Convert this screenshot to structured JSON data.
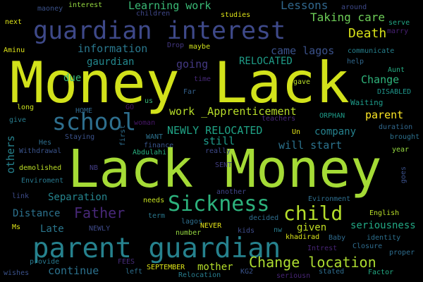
{
  "background": "#000000",
  "words": [
    {
      "id": "w1",
      "text": "Money Lack",
      "color": "#d2e21b"
    },
    {
      "id": "w2",
      "text": "Lack Money",
      "color": "#a5db36"
    },
    {
      "id": "w3",
      "text": "parent guardian",
      "color": "#26828e"
    },
    {
      "id": "w4",
      "text": "guardian interest",
      "color": "#3e4989"
    },
    {
      "id": "w5",
      "text": "Sickness",
      "color": "#2db27d"
    },
    {
      "id": "w6",
      "text": "school",
      "color": "#2e6f8e"
    },
    {
      "id": "w7",
      "text": "child",
      "color": "#b5de2b"
    },
    {
      "id": "w8",
      "text": "Father",
      "color": "#482878"
    },
    {
      "id": "w9",
      "text": "Change location",
      "color": "#addc30"
    },
    {
      "id": "w10",
      "text": "Death",
      "color": "#d8e219"
    },
    {
      "id": "w11",
      "text": "Lessons",
      "color": "#31688e"
    },
    {
      "id": "w12",
      "text": "Taking care",
      "color": "#6ece58"
    },
    {
      "id": "w13",
      "text": "Learning work",
      "color": "#3aba76"
    },
    {
      "id": "w14",
      "text": "information",
      "color": "#2a788e"
    },
    {
      "id": "w15",
      "text": "came lagos",
      "color": "#3b528b"
    },
    {
      "id": "w16",
      "text": "RELOCATED",
      "color": "#1f9e89"
    },
    {
      "id": "w17",
      "text": "Change",
      "color": "#2fb47c"
    },
    {
      "id": "w18",
      "text": "parent",
      "color": "#fde725"
    },
    {
      "id": "w19",
      "text": "NEWLY RELOCATED",
      "color": "#20a386"
    },
    {
      "id": "w20",
      "text": "company",
      "color": "#26828e"
    },
    {
      "id": "w21",
      "text": "will start",
      "color": "#2c738e"
    },
    {
      "id": "w22",
      "text": "still",
      "color": "#1f9a8a"
    },
    {
      "id": "w23",
      "text": "work _Apprenticement",
      "color": "#b8de29"
    },
    {
      "id": "w24",
      "text": "going",
      "color": "#443983"
    },
    {
      "id": "w25",
      "text": "gaurdian",
      "color": "#23888e"
    },
    {
      "id": "w26",
      "text": "due",
      "color": "#35b779"
    },
    {
      "id": "w27",
      "text": "seriousness",
      "color": "#22a884"
    },
    {
      "id": "w28",
      "text": "given",
      "color": "#c2df23"
    },
    {
      "id": "w29",
      "text": "continue",
      "color": "#2c728e"
    },
    {
      "id": "w30",
      "text": "Separation",
      "color": "#25848e"
    },
    {
      "id": "w31",
      "text": "Distance",
      "color": "#2c728e"
    },
    {
      "id": "w32",
      "text": "Late",
      "color": "#2a778e"
    },
    {
      "id": "w33",
      "text": "mother",
      "color": "#b5de2b"
    },
    {
      "id": "w34",
      "text": "others",
      "color": "#26828e"
    },
    {
      "id": "w35",
      "text": "ORPHAN",
      "color": "#1e9c89"
    },
    {
      "id": "w36",
      "text": "Waiting",
      "color": "#1e9b8a"
    },
    {
      "id": "w37",
      "text": "DISABLED",
      "color": "#1f968b"
    },
    {
      "id": "w38",
      "text": "Aunt",
      "color": "#25ab82"
    },
    {
      "id": "w39",
      "text": "help",
      "color": "#31688e"
    },
    {
      "id": "w40",
      "text": "communicate",
      "color": "#26818e"
    },
    {
      "id": "w41",
      "text": "gave",
      "color": "#b8de29"
    },
    {
      "id": "w42",
      "text": "Far",
      "color": "#34618d"
    },
    {
      "id": "w43",
      "text": "time",
      "color": "#482979"
    },
    {
      "id": "w44",
      "text": "maybe",
      "color": "#d0e11c"
    },
    {
      "id": "w45",
      "text": "Drop",
      "color": "#453882"
    },
    {
      "id": "w46",
      "text": "studies",
      "color": "#dde318"
    },
    {
      "id": "w47",
      "text": "children",
      "color": "#3f4788"
    },
    {
      "id": "w48",
      "text": "interest",
      "color": "#95d840"
    },
    {
      "id": "w49",
      "text": "maoney",
      "color": "#3b528b"
    },
    {
      "id": "w50",
      "text": "around",
      "color": "#3e4989"
    },
    {
      "id": "w51",
      "text": "serve",
      "color": "#22a785"
    },
    {
      "id": "w52",
      "text": "marry",
      "color": "#482173"
    },
    {
      "id": "w53",
      "text": "next",
      "color": "#dde318"
    },
    {
      "id": "w54",
      "text": "Aminu",
      "color": "#dde318"
    },
    {
      "id": "w55",
      "text": "long",
      "color": "#cae11f"
    },
    {
      "id": "w56",
      "text": "give",
      "color": "#287d8e"
    },
    {
      "id": "w57",
      "text": "Hes",
      "color": "#2e6e8e"
    },
    {
      "id": "w58",
      "text": "Withdrawal",
      "color": "#3a538b"
    },
    {
      "id": "w59",
      "text": "demolished",
      "color": "#bddf26"
    },
    {
      "id": "w60",
      "text": "Enviroment",
      "color": "#29798e"
    },
    {
      "id": "w61",
      "text": "link",
      "color": "#3e4c8a"
    },
    {
      "id": "w62",
      "text": "Ms",
      "color": "#dce319"
    },
    {
      "id": "w63",
      "text": "NB",
      "color": "#433d84"
    },
    {
      "id": "w64",
      "text": "NEWLY",
      "color": "#3e4a89"
    },
    {
      "id": "w65",
      "text": "HOME",
      "color": "#31688e"
    },
    {
      "id": "w66",
      "text": "GO",
      "color": "#471063"
    },
    {
      "id": "w67",
      "text": "us",
      "color": "#35b779"
    },
    {
      "id": "w68",
      "text": "Staying",
      "color": "#3b528b"
    },
    {
      "id": "w69",
      "text": "woman",
      "color": "#481769"
    },
    {
      "id": "w70",
      "text": "WANT",
      "color": "#2d718e"
    },
    {
      "id": "w71",
      "text": "finance",
      "color": "#39558c"
    },
    {
      "id": "w72",
      "text": "Abdulahi",
      "color": "#29af7f"
    },
    {
      "id": "w73",
      "text": "first",
      "color": "#2e6e8e"
    },
    {
      "id": "w74",
      "text": "teachers",
      "color": "#482979"
    },
    {
      "id": "w75",
      "text": "Un",
      "color": "#e2e418"
    },
    {
      "id": "w76",
      "text": "duration",
      "color": "#31688e"
    },
    {
      "id": "w77",
      "text": "brought",
      "color": "#2d718e"
    },
    {
      "id": "w78",
      "text": "year",
      "color": "#95d840"
    },
    {
      "id": "w79",
      "text": "really",
      "color": "#3e4989"
    },
    {
      "id": "w80",
      "text": "SENT",
      "color": "#433e85"
    },
    {
      "id": "w81",
      "text": "goes",
      "color": "#3b528b"
    },
    {
      "id": "w82",
      "text": "another",
      "color": "#404588"
    },
    {
      "id": "w83",
      "text": "Evironment",
      "color": "#2e6e8e"
    },
    {
      "id": "w84",
      "text": "needs",
      "color": "#c5e021"
    },
    {
      "id": "w85",
      "text": "term",
      "color": "#2a788e"
    },
    {
      "id": "w86",
      "text": "lagos",
      "color": "#2e6f8e"
    },
    {
      "id": "w87",
      "text": "NEVER",
      "color": "#e5e419"
    },
    {
      "id": "w88",
      "text": "number",
      "color": "#95d840"
    },
    {
      "id": "w89",
      "text": "decided",
      "color": "#2e6e8e"
    },
    {
      "id": "w90",
      "text": "kids",
      "color": "#3e4c8a"
    },
    {
      "id": "w91",
      "text": "nw",
      "color": "#287c8e"
    },
    {
      "id": "w92",
      "text": "khadirad",
      "color": "#d8e219"
    },
    {
      "id": "w93",
      "text": "English",
      "color": "#b8de29"
    },
    {
      "id": "w94",
      "text": "identity",
      "color": "#2d708e"
    },
    {
      "id": "w95",
      "text": "Baby",
      "color": "#2f6b8e"
    },
    {
      "id": "w96",
      "text": "Closure",
      "color": "#2f6c8e"
    },
    {
      "id": "w97",
      "text": "Intrest",
      "color": "#482576"
    },
    {
      "id": "w98",
      "text": "proper",
      "color": "#2e6d8e"
    },
    {
      "id": "w99",
      "text": "FEES",
      "color": "#472c7a"
    },
    {
      "id": "w100",
      "text": "provide",
      "color": "#29798e"
    },
    {
      "id": "w101",
      "text": "SEPTEMBER",
      "color": "#dde318"
    },
    {
      "id": "w102",
      "text": "KG2",
      "color": "#3a548c"
    },
    {
      "id": "w103",
      "text": "Relocation",
      "color": "#287d8e"
    },
    {
      "id": "w104",
      "text": "seriousn",
      "color": "#482576"
    },
    {
      "id": "w105",
      "text": "stated",
      "color": "#2e6d8e"
    },
    {
      "id": "w106",
      "text": "Factor",
      "color": "#23a983"
    },
    {
      "id": "w107",
      "text": "left",
      "color": "#2e6f8e"
    },
    {
      "id": "w108",
      "text": "wishes",
      "color": "#3b528b"
    }
  ]
}
